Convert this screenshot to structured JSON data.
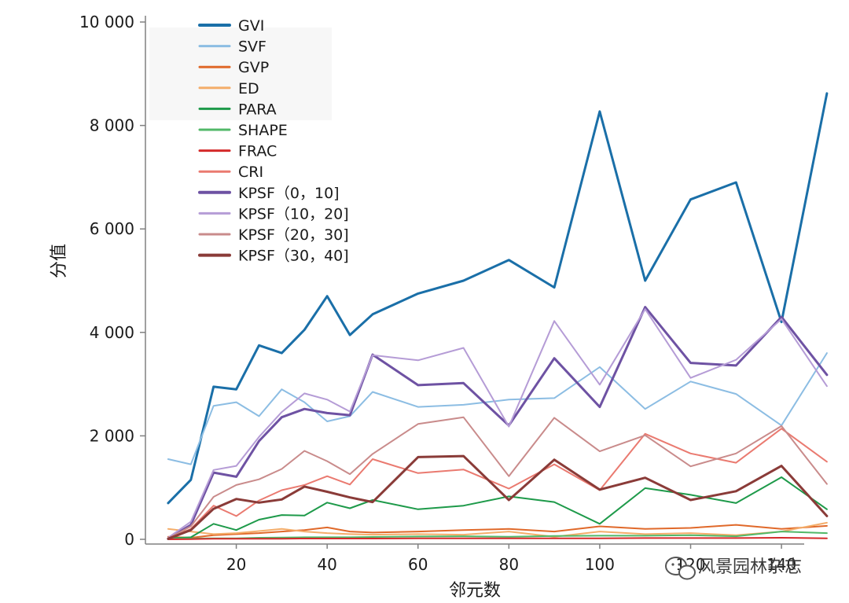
{
  "chart_data": {
    "type": "line",
    "xlabel": "邻元数",
    "ylabel": "分值",
    "xlim": [
      0,
      145
    ],
    "ylim": [
      0,
      10000
    ],
    "x_ticks": [
      20,
      40,
      60,
      80,
      100,
      120,
      140
    ],
    "x_tick_labels": [
      "20",
      "40",
      "60",
      "80",
      "100",
      "120",
      "140"
    ],
    "y_ticks": [
      0,
      2000,
      4000,
      6000,
      8000,
      10000
    ],
    "y_tick_labels": [
      "0",
      "2 000",
      "4 000",
      "6 000",
      "8 000",
      "10 000"
    ],
    "grid": false,
    "legend_position": "top-left",
    "x": [
      5,
      10,
      15,
      20,
      25,
      30,
      35,
      40,
      45,
      50,
      60,
      70,
      80,
      90,
      100,
      110,
      120,
      130,
      140,
      150
    ],
    "series": [
      {
        "name": "GVI",
        "color": "#1a6fa8",
        "width": 3,
        "values": [
          700,
          1150,
          2950,
          2900,
          3750,
          3600,
          4050,
          4700,
          3950,
          4350,
          4750,
          5000,
          5400,
          4870,
          8270,
          5000,
          6570,
          6900,
          4200,
          8620
        ]
      },
      {
        "name": "SVF",
        "color": "#8cbde3",
        "width": 2,
        "values": [
          1550,
          1450,
          2580,
          2650,
          2380,
          2900,
          2650,
          2280,
          2380,
          2850,
          2560,
          2600,
          2700,
          2730,
          3330,
          2520,
          3050,
          2810,
          2200,
          3600
        ]
      },
      {
        "name": "GVP",
        "color": "#e0692a",
        "width": 2,
        "values": [
          50,
          30,
          80,
          100,
          120,
          150,
          180,
          230,
          150,
          130,
          150,
          180,
          200,
          150,
          250,
          200,
          220,
          280,
          200,
          260
        ]
      },
      {
        "name": "ED",
        "color": "#f4ad6a",
        "width": 2,
        "values": [
          200,
          150,
          100,
          120,
          160,
          200,
          150,
          120,
          100,
          90,
          100,
          90,
          150,
          50,
          150,
          100,
          120,
          80,
          150,
          320
        ]
      },
      {
        "name": "PARA",
        "color": "#1e9a4a",
        "width": 2,
        "values": [
          20,
          40,
          300,
          180,
          380,
          470,
          460,
          710,
          600,
          760,
          580,
          650,
          830,
          720,
          300,
          990,
          860,
          700,
          1200,
          580
        ]
      },
      {
        "name": "SHAPE",
        "color": "#52b868",
        "width": 2,
        "values": [
          10,
          15,
          20,
          20,
          30,
          35,
          40,
          40,
          40,
          45,
          55,
          60,
          50,
          65,
          70,
          70,
          80,
          60,
          150,
          120
        ]
      },
      {
        "name": "FRAC",
        "color": "#d42a2a",
        "width": 2,
        "values": [
          0,
          5,
          10,
          10,
          10,
          12,
          15,
          15,
          15,
          15,
          20,
          20,
          20,
          20,
          20,
          25,
          25,
          25,
          30,
          20
        ]
      },
      {
        "name": "CRI",
        "color": "#ea7a70",
        "width": 2,
        "values": [
          10,
          200,
          650,
          450,
          750,
          950,
          1050,
          1220,
          1060,
          1550,
          1280,
          1350,
          980,
          1450,
          950,
          2040,
          1660,
          1480,
          2140,
          1500
        ]
      },
      {
        "name": "KPSF（0，10]",
        "color": "#6e52a3",
        "width": 3,
        "values": [
          10,
          280,
          1290,
          1210,
          1900,
          2360,
          2520,
          2440,
          2400,
          3570,
          2980,
          3020,
          2200,
          3500,
          2560,
          4490,
          3410,
          3360,
          4300,
          3180
        ]
      },
      {
        "name": "KPSF（10，20]",
        "color": "#b59cd6",
        "width": 2,
        "values": [
          30,
          340,
          1340,
          1420,
          1980,
          2460,
          2820,
          2700,
          2470,
          3560,
          3460,
          3700,
          2180,
          4220,
          2990,
          4450,
          3120,
          3470,
          4260,
          2960
        ]
      },
      {
        "name": "KPSF（20，30]",
        "color": "#c98b8b",
        "width": 2,
        "values": [
          20,
          250,
          820,
          1050,
          1160,
          1360,
          1710,
          1510,
          1260,
          1650,
          2230,
          2360,
          1220,
          2350,
          1700,
          2010,
          1410,
          1660,
          2190,
          1070
        ]
      },
      {
        "name": "KPSF（30，40]",
        "color": "#8a3b38",
        "width": 3,
        "values": [
          10,
          180,
          590,
          780,
          710,
          770,
          1020,
          920,
          810,
          720,
          1590,
          1610,
          760,
          1540,
          960,
          1190,
          760,
          930,
          1420,
          450
        ]
      }
    ]
  },
  "watermark": {
    "text": "风景园林杂志",
    "icon": "wechat-icon"
  }
}
